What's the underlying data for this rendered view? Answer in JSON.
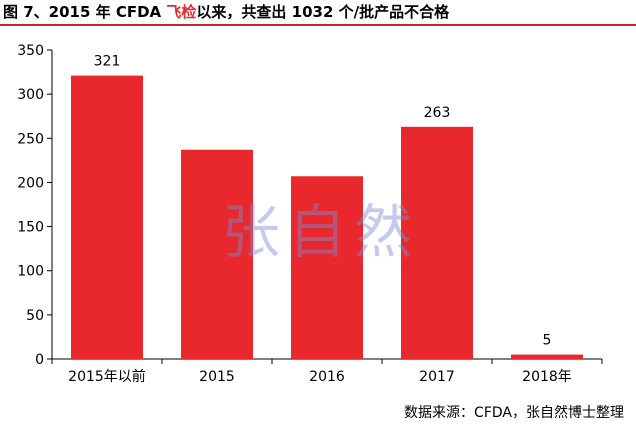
{
  "title": {
    "prefix": "图 7、2015 年 CFDA ",
    "highlight": "飞检",
    "suffix": "以来，共查出 1032 个/批产品不合格"
  },
  "watermark": "张自然",
  "source": "数据来源：CFDA，张自然博士整理",
  "colors": {
    "bar": "#e8282c",
    "accent": "#c0262c"
  },
  "chart_data": {
    "type": "bar",
    "categories": [
      "2015年以前",
      "2015",
      "2016",
      "2017",
      "2018年"
    ],
    "values": [
      321,
      237,
      207,
      263,
      5
    ],
    "data_labels": [
      "321",
      null,
      null,
      "263",
      "5"
    ],
    "ylim": [
      0,
      350
    ],
    "yticks": [
      0,
      50,
      100,
      150,
      200,
      250,
      300,
      350
    ],
    "grid": false
  }
}
